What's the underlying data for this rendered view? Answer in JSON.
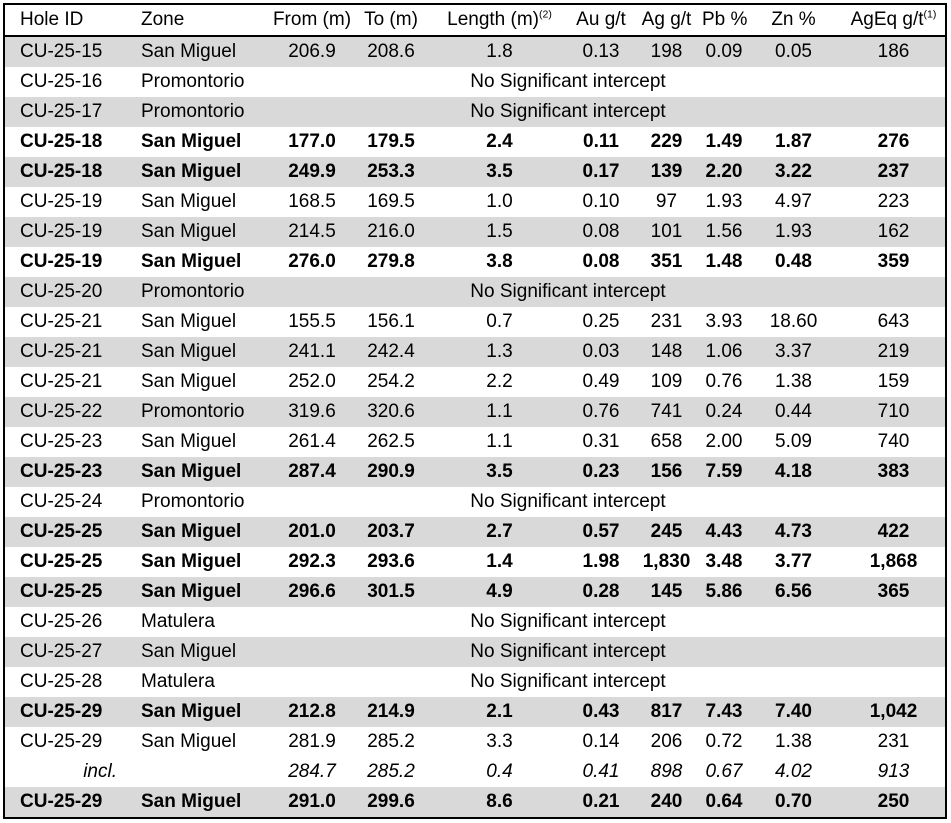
{
  "table": {
    "columns": [
      {
        "label": "Hole ID",
        "sup": ""
      },
      {
        "label": "Zone",
        "sup": ""
      },
      {
        "label": "From (m)",
        "sup": ""
      },
      {
        "label": "To (m)",
        "sup": ""
      },
      {
        "label": "Length (m)",
        "sup": "(2)"
      },
      {
        "label": "Au g/t",
        "sup": ""
      },
      {
        "label": "Ag g/t",
        "sup": ""
      },
      {
        "label": "Pb %",
        "sup": ""
      },
      {
        "label": "Zn %",
        "sup": ""
      },
      {
        "label": "AgEq g/t",
        "sup": "(1)"
      }
    ],
    "no_intercept_text": "No Significant intercept",
    "colors": {
      "shaded_row": "#d9d9d9",
      "border": "#000000",
      "text": "#000000"
    },
    "rows": [
      {
        "hole_id": "CU-25-15",
        "zone": "San Miguel",
        "from": "206.9",
        "to": "208.6",
        "length": "1.8",
        "au": "0.13",
        "ag": "198",
        "pb": "0.09",
        "zn": "0.05",
        "ageq": "186",
        "bold": false,
        "italic": false,
        "shaded": true,
        "no_intercept": false
      },
      {
        "hole_id": "CU-25-16",
        "zone": "Promontorio",
        "from": "",
        "to": "",
        "length": "",
        "au": "",
        "ag": "",
        "pb": "",
        "zn": "",
        "ageq": "",
        "bold": false,
        "italic": false,
        "shaded": false,
        "no_intercept": true
      },
      {
        "hole_id": "CU-25-17",
        "zone": "Promontorio",
        "from": "",
        "to": "",
        "length": "",
        "au": "",
        "ag": "",
        "pb": "",
        "zn": "",
        "ageq": "",
        "bold": false,
        "italic": false,
        "shaded": true,
        "no_intercept": true
      },
      {
        "hole_id": "CU-25-18",
        "zone": "San Miguel",
        "from": "177.0",
        "to": "179.5",
        "length": "2.4",
        "au": "0.11",
        "ag": "229",
        "pb": "1.49",
        "zn": "1.87",
        "ageq": "276",
        "bold": true,
        "italic": false,
        "shaded": false,
        "no_intercept": false
      },
      {
        "hole_id": "CU-25-18",
        "zone": "San Miguel",
        "from": "249.9",
        "to": "253.3",
        "length": "3.5",
        "au": "0.17",
        "ag": "139",
        "pb": "2.20",
        "zn": "3.22",
        "ageq": "237",
        "bold": true,
        "italic": false,
        "shaded": true,
        "no_intercept": false
      },
      {
        "hole_id": "CU-25-19",
        "zone": "San Miguel",
        "from": "168.5",
        "to": "169.5",
        "length": "1.0",
        "au": "0.10",
        "ag": "97",
        "pb": "1.93",
        "zn": "4.97",
        "ageq": "223",
        "bold": false,
        "italic": false,
        "shaded": false,
        "no_intercept": false
      },
      {
        "hole_id": "CU-25-19",
        "zone": "San Miguel",
        "from": "214.5",
        "to": "216.0",
        "length": "1.5",
        "au": "0.08",
        "ag": "101",
        "pb": "1.56",
        "zn": "1.93",
        "ageq": "162",
        "bold": false,
        "italic": false,
        "shaded": true,
        "no_intercept": false
      },
      {
        "hole_id": "CU-25-19",
        "zone": "San Miguel",
        "from": "276.0",
        "to": "279.8",
        "length": "3.8",
        "au": "0.08",
        "ag": "351",
        "pb": "1.48",
        "zn": "0.48",
        "ageq": "359",
        "bold": true,
        "italic": false,
        "shaded": false,
        "no_intercept": false
      },
      {
        "hole_id": "CU-25-20",
        "zone": "Promontorio",
        "from": "",
        "to": "",
        "length": "",
        "au": "",
        "ag": "",
        "pb": "",
        "zn": "",
        "ageq": "",
        "bold": false,
        "italic": false,
        "shaded": true,
        "no_intercept": true
      },
      {
        "hole_id": "CU-25-21",
        "zone": "San Miguel",
        "from": "155.5",
        "to": "156.1",
        "length": "0.7",
        "au": "0.25",
        "ag": "231",
        "pb": "3.93",
        "zn": "18.60",
        "ageq": "643",
        "bold": false,
        "italic": false,
        "shaded": false,
        "no_intercept": false
      },
      {
        "hole_id": "CU-25-21",
        "zone": "San Miguel",
        "from": "241.1",
        "to": "242.4",
        "length": "1.3",
        "au": "0.03",
        "ag": "148",
        "pb": "1.06",
        "zn": "3.37",
        "ageq": "219",
        "bold": false,
        "italic": false,
        "shaded": true,
        "no_intercept": false
      },
      {
        "hole_id": "CU-25-21",
        "zone": "San Miguel",
        "from": "252.0",
        "to": "254.2",
        "length": "2.2",
        "au": "0.49",
        "ag": "109",
        "pb": "0.76",
        "zn": "1.38",
        "ageq": "159",
        "bold": false,
        "italic": false,
        "shaded": false,
        "no_intercept": false
      },
      {
        "hole_id": "CU-25-22",
        "zone": "Promontorio",
        "from": "319.6",
        "to": "320.6",
        "length": "1.1",
        "au": "0.76",
        "ag": "741",
        "pb": "0.24",
        "zn": "0.44",
        "ageq": "710",
        "bold": false,
        "italic": false,
        "shaded": true,
        "no_intercept": false
      },
      {
        "hole_id": "CU-25-23",
        "zone": "San Miguel",
        "from": "261.4",
        "to": "262.5",
        "length": "1.1",
        "au": "0.31",
        "ag": "658",
        "pb": "2.00",
        "zn": "5.09",
        "ageq": "740",
        "bold": false,
        "italic": false,
        "shaded": false,
        "no_intercept": false
      },
      {
        "hole_id": "CU-25-23",
        "zone": "San Miguel",
        "from": "287.4",
        "to": "290.9",
        "length": "3.5",
        "au": "0.23",
        "ag": "156",
        "pb": "7.59",
        "zn": "4.18",
        "ageq": "383",
        "bold": true,
        "italic": false,
        "shaded": true,
        "no_intercept": false
      },
      {
        "hole_id": "CU-25-24",
        "zone": "Promontorio",
        "from": "",
        "to": "",
        "length": "",
        "au": "",
        "ag": "",
        "pb": "",
        "zn": "",
        "ageq": "",
        "bold": false,
        "italic": false,
        "shaded": false,
        "no_intercept": true
      },
      {
        "hole_id": "CU-25-25",
        "zone": "San Miguel",
        "from": "201.0",
        "to": "203.7",
        "length": "2.7",
        "au": "0.57",
        "ag": "245",
        "pb": "4.43",
        "zn": "4.73",
        "ageq": "422",
        "bold": true,
        "italic": false,
        "shaded": true,
        "no_intercept": false
      },
      {
        "hole_id": "CU-25-25",
        "zone": "San Miguel",
        "from": "292.3",
        "to": "293.6",
        "length": "1.4",
        "au": "1.98",
        "ag": "1,830",
        "pb": "3.48",
        "zn": "3.77",
        "ageq": "1,868",
        "bold": true,
        "italic": false,
        "shaded": false,
        "no_intercept": false
      },
      {
        "hole_id": "CU-25-25",
        "zone": "San Miguel",
        "from": "296.6",
        "to": "301.5",
        "length": "4.9",
        "au": "0.28",
        "ag": "145",
        "pb": "5.86",
        "zn": "6.56",
        "ageq": "365",
        "bold": true,
        "italic": false,
        "shaded": true,
        "no_intercept": false
      },
      {
        "hole_id": "CU-25-26",
        "zone": "Matulera",
        "from": "",
        "to": "",
        "length": "",
        "au": "",
        "ag": "",
        "pb": "",
        "zn": "",
        "ageq": "",
        "bold": false,
        "italic": false,
        "shaded": false,
        "no_intercept": true
      },
      {
        "hole_id": "CU-25-27",
        "zone": "San Miguel",
        "from": "",
        "to": "",
        "length": "",
        "au": "",
        "ag": "",
        "pb": "",
        "zn": "",
        "ageq": "",
        "bold": false,
        "italic": false,
        "shaded": true,
        "no_intercept": true
      },
      {
        "hole_id": "CU-25-28",
        "zone": "Matulera",
        "from": "",
        "to": "",
        "length": "",
        "au": "",
        "ag": "",
        "pb": "",
        "zn": "",
        "ageq": "",
        "bold": false,
        "italic": false,
        "shaded": false,
        "no_intercept": true
      },
      {
        "hole_id": "CU-25-29",
        "zone": "San Miguel",
        "from": "212.8",
        "to": "214.9",
        "length": "2.1",
        "au": "0.43",
        "ag": "817",
        "pb": "7.43",
        "zn": "7.40",
        "ageq": "1,042",
        "bold": true,
        "italic": false,
        "shaded": true,
        "no_intercept": false
      },
      {
        "hole_id": "CU-25-29",
        "zone": "San Miguel",
        "from": "281.9",
        "to": "285.2",
        "length": "3.3",
        "au": "0.14",
        "ag": "206",
        "pb": "0.72",
        "zn": "1.38",
        "ageq": "231",
        "bold": false,
        "italic": false,
        "shaded": false,
        "no_intercept": false
      },
      {
        "hole_id": "incl.",
        "zone": "",
        "from": "284.7",
        "to": "285.2",
        "length": "0.4",
        "au": "0.41",
        "ag": "898",
        "pb": "0.67",
        "zn": "4.02",
        "ageq": "913",
        "bold": false,
        "italic": true,
        "shaded": false,
        "no_intercept": false
      },
      {
        "hole_id": "CU-25-29",
        "zone": "San Miguel",
        "from": "291.0",
        "to": "299.6",
        "length": "8.6",
        "au": "0.21",
        "ag": "240",
        "pb": "0.64",
        "zn": "0.70",
        "ageq": "250",
        "bold": true,
        "italic": false,
        "shaded": true,
        "no_intercept": false
      }
    ]
  }
}
